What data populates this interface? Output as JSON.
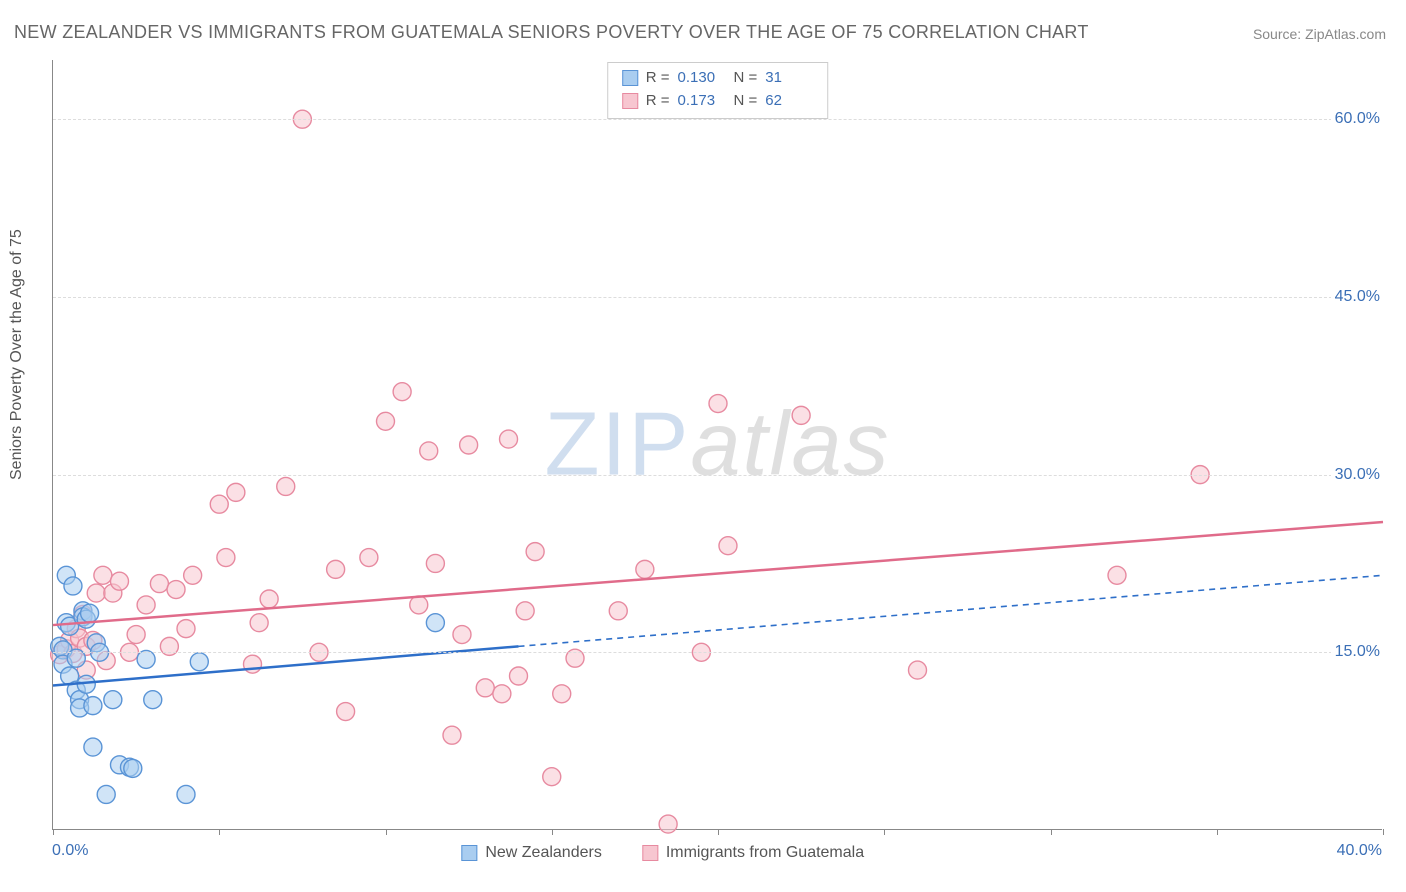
{
  "title": "NEW ZEALANDER VS IMMIGRANTS FROM GUATEMALA SENIORS POVERTY OVER THE AGE OF 75 CORRELATION CHART",
  "source": "Source: ZipAtlas.com",
  "y_axis_label": "Seniors Poverty Over the Age of 75",
  "watermark": {
    "zip": "ZIP",
    "atlas": "atlas"
  },
  "chart": {
    "type": "scatter",
    "background_color": "#ffffff",
    "grid_color": "#dddddd",
    "axis_color": "#888888",
    "tick_label_color": "#3b6fb6",
    "xlim": [
      0,
      40
    ],
    "ylim": [
      0,
      65
    ],
    "x_ticks": [
      0,
      5,
      10,
      15,
      20,
      25,
      30,
      35,
      40
    ],
    "y_ticks": [
      15,
      30,
      45,
      60
    ],
    "x_tick_labels": {
      "0": "0.0%",
      "40": "40.0%"
    },
    "y_tick_labels": {
      "15": "15.0%",
      "30": "30.0%",
      "45": "45.0%",
      "60": "60.0%"
    },
    "marker_radius": 9,
    "marker_stroke_width": 1.4,
    "trend_line_width": 2.5,
    "series": {
      "nz": {
        "label": "New Zealanders",
        "fill": "#a9cdf0",
        "stroke": "#5a94d6",
        "fill_opacity": 0.55,
        "R": "0.130",
        "N": "31",
        "trend": {
          "x1": 0,
          "y1": 12.2,
          "x2": 14,
          "y2": 15.5,
          "dash_x2": 40,
          "dash_y2": 21.5
        },
        "points": [
          [
            0.2,
            15.5
          ],
          [
            0.3,
            15.2
          ],
          [
            0.3,
            14.0
          ],
          [
            0.4,
            21.5
          ],
          [
            0.4,
            17.5
          ],
          [
            0.5,
            17.2
          ],
          [
            0.5,
            13.0
          ],
          [
            0.6,
            20.6
          ],
          [
            0.7,
            14.5
          ],
          [
            0.7,
            11.8
          ],
          [
            0.8,
            11.0
          ],
          [
            0.8,
            10.3
          ],
          [
            0.9,
            18.5
          ],
          [
            0.9,
            18.0
          ],
          [
            1.0,
            17.8
          ],
          [
            1.0,
            12.3
          ],
          [
            1.1,
            18.3
          ],
          [
            1.2,
            10.5
          ],
          [
            1.2,
            7.0
          ],
          [
            1.3,
            15.8
          ],
          [
            1.4,
            15.0
          ],
          [
            1.6,
            3.0
          ],
          [
            1.8,
            11.0
          ],
          [
            2.0,
            5.5
          ],
          [
            2.3,
            5.3
          ],
          [
            2.4,
            5.2
          ],
          [
            2.8,
            14.4
          ],
          [
            3.0,
            11.0
          ],
          [
            4.0,
            3.0
          ],
          [
            4.4,
            14.2
          ],
          [
            11.5,
            17.5
          ]
        ]
      },
      "gt": {
        "label": "Immigrants from Guatemala",
        "fill": "#f7c6d0",
        "stroke": "#e78aa0",
        "fill_opacity": 0.55,
        "R": "0.173",
        "N": "62",
        "trend": {
          "x1": 0,
          "y1": 17.3,
          "x2": 40,
          "y2": 26.0
        },
        "points": [
          [
            0.2,
            14.8
          ],
          [
            0.4,
            15.3
          ],
          [
            0.5,
            16.0
          ],
          [
            0.6,
            14.9
          ],
          [
            0.7,
            17.0
          ],
          [
            0.8,
            16.2
          ],
          [
            0.9,
            18.2
          ],
          [
            1.0,
            15.5
          ],
          [
            1.0,
            13.5
          ],
          [
            1.2,
            16.0
          ],
          [
            1.3,
            20.0
          ],
          [
            1.5,
            21.5
          ],
          [
            1.6,
            14.3
          ],
          [
            1.8,
            20.0
          ],
          [
            2.0,
            21.0
          ],
          [
            2.3,
            15.0
          ],
          [
            2.5,
            16.5
          ],
          [
            2.8,
            19.0
          ],
          [
            3.2,
            20.8
          ],
          [
            3.5,
            15.5
          ],
          [
            3.7,
            20.3
          ],
          [
            4.0,
            17.0
          ],
          [
            4.2,
            21.5
          ],
          [
            5.0,
            27.5
          ],
          [
            5.2,
            23.0
          ],
          [
            5.5,
            28.5
          ],
          [
            6.0,
            14.0
          ],
          [
            6.2,
            17.5
          ],
          [
            6.5,
            19.5
          ],
          [
            7.0,
            29.0
          ],
          [
            7.5,
            60.0
          ],
          [
            8.0,
            15.0
          ],
          [
            8.5,
            22.0
          ],
          [
            8.8,
            10.0
          ],
          [
            9.5,
            23.0
          ],
          [
            10.0,
            34.5
          ],
          [
            10.5,
            37.0
          ],
          [
            11.0,
            19.0
          ],
          [
            11.3,
            32.0
          ],
          [
            11.5,
            22.5
          ],
          [
            12.0,
            8.0
          ],
          [
            12.3,
            16.5
          ],
          [
            12.5,
            32.5
          ],
          [
            13.0,
            12.0
          ],
          [
            13.5,
            11.5
          ],
          [
            13.7,
            33.0
          ],
          [
            14.0,
            13.0
          ],
          [
            14.2,
            18.5
          ],
          [
            14.5,
            23.5
          ],
          [
            15.0,
            4.5
          ],
          [
            15.3,
            11.5
          ],
          [
            15.7,
            14.5
          ],
          [
            17.0,
            18.5
          ],
          [
            17.8,
            22.0
          ],
          [
            18.5,
            0.5
          ],
          [
            19.5,
            15.0
          ],
          [
            20.0,
            36.0
          ],
          [
            20.3,
            24.0
          ],
          [
            22.5,
            35.0
          ],
          [
            26.0,
            13.5
          ],
          [
            32.0,
            21.5
          ],
          [
            34.5,
            30.0
          ]
        ]
      }
    }
  },
  "stats_box": {
    "rows": [
      {
        "swatch_series": "nz",
        "R_label": "R =",
        "N_label": "N ="
      },
      {
        "swatch_series": "gt",
        "R_label": "R =",
        "N_label": "N ="
      }
    ]
  }
}
